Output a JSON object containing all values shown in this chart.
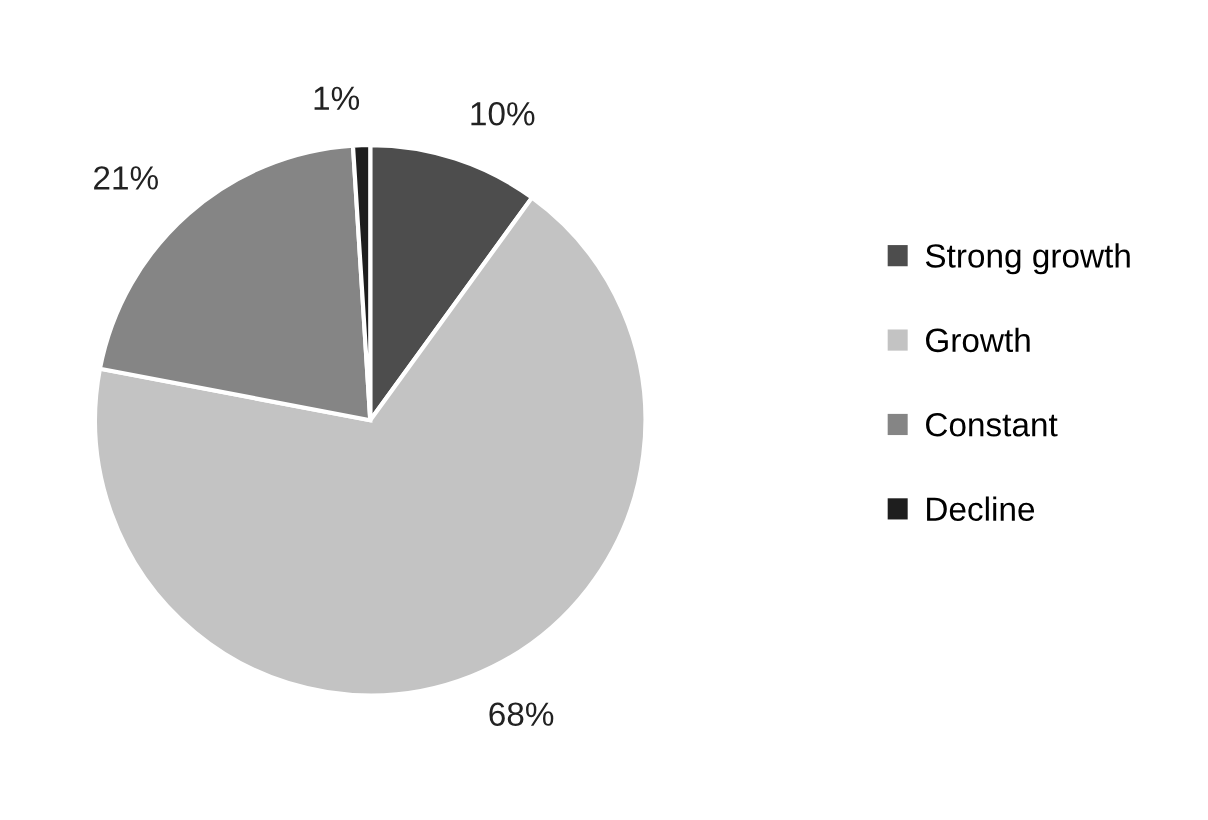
{
  "chart_data": {
    "type": "pie",
    "categories": [
      "Strong growth",
      "Growth",
      "Constant",
      "Decline"
    ],
    "values": [
      10,
      68,
      21,
      1
    ],
    "colors": [
      "#4d4d4d",
      "#c3c3c3",
      "#858585",
      "#1e1e1e"
    ],
    "value_labels": [
      "10%",
      "68%",
      "21%",
      "1%"
    ],
    "legend": "right"
  }
}
